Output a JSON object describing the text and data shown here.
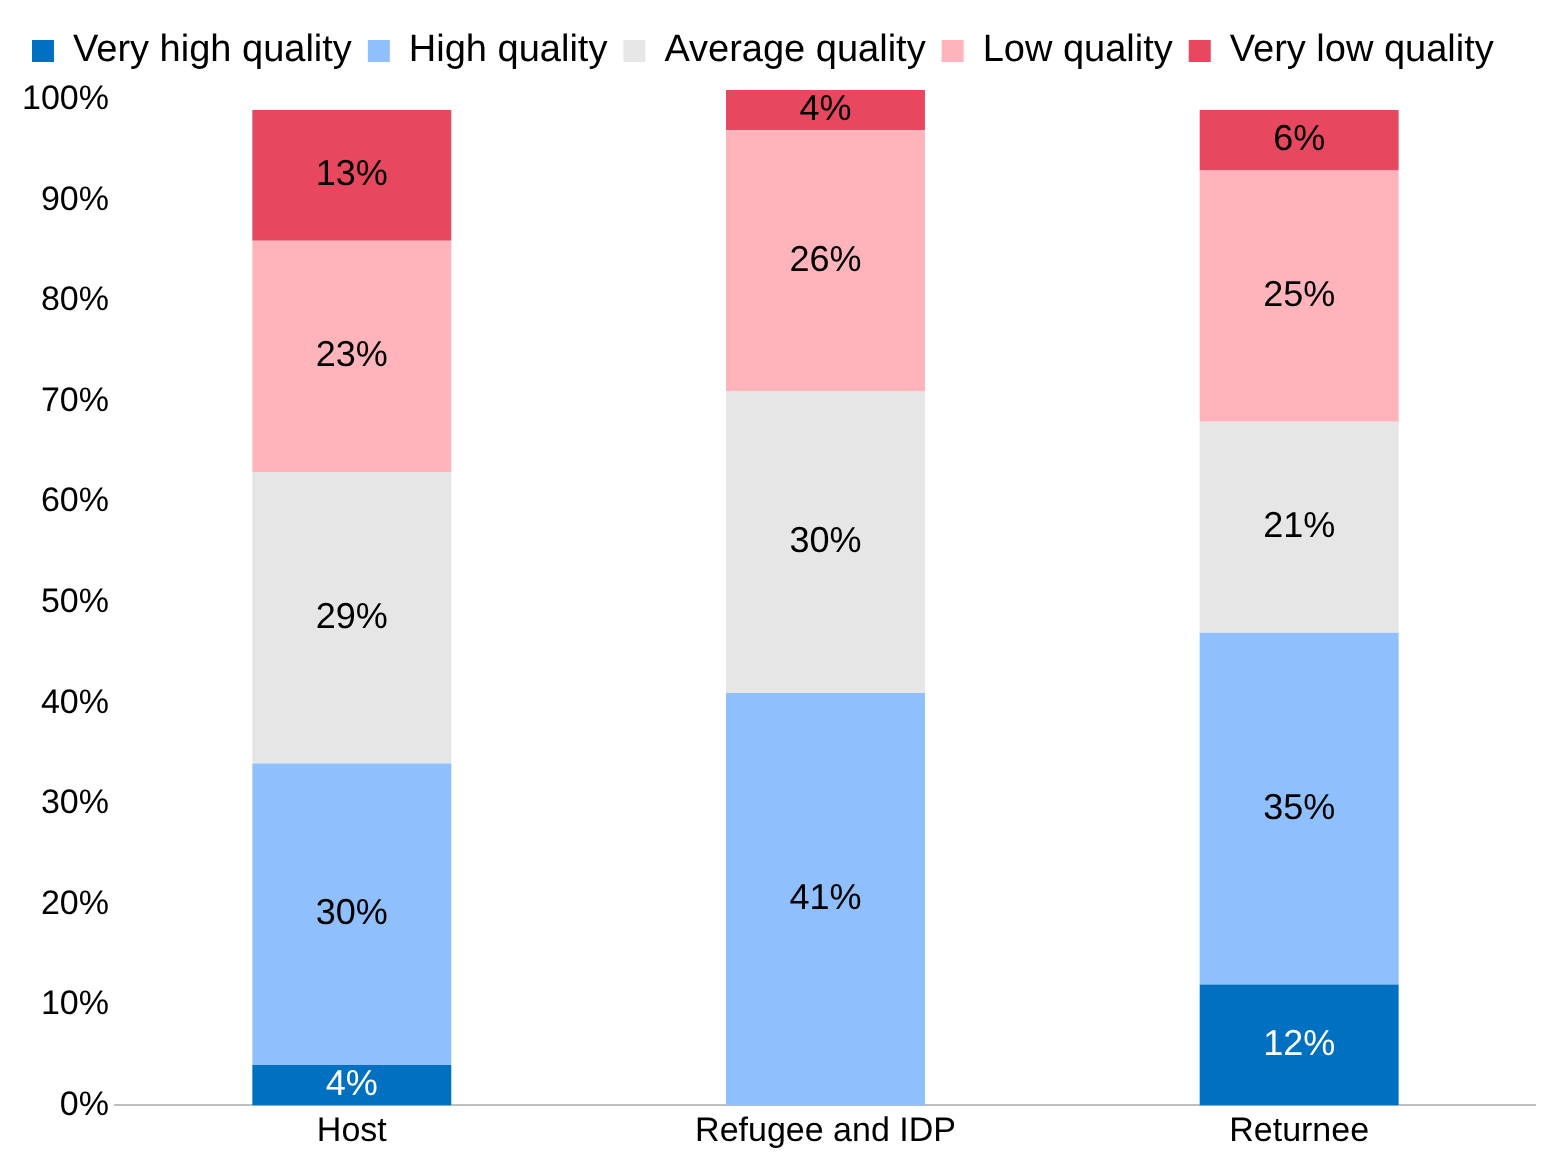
{
  "chart_data": {
    "type": "bar",
    "stacked": true,
    "legend": "top left",
    "grid": false,
    "categories": [
      "Host",
      "Refugee and IDP",
      "Returnee"
    ],
    "series": [
      {
        "name": "Very high quality",
        "color": "#0070c0",
        "values": [
          4,
          null,
          12
        ],
        "value_labels": [
          "4%",
          null,
          "12%"
        ]
      },
      {
        "name": "High quality",
        "color": "#8fbffc",
        "values": [
          30,
          41,
          35
        ],
        "value_labels": [
          "30%",
          "41%",
          "35%"
        ]
      },
      {
        "name": "Average quality",
        "color": "#e6e6e6",
        "values": [
          29,
          30,
          21
        ],
        "value_labels": [
          "29%",
          "30%",
          "21%"
        ]
      },
      {
        "name": "Low quality",
        "color": "#ffb4bb",
        "values": [
          23,
          26,
          25
        ],
        "value_labels": [
          "23%",
          "26%",
          "25%"
        ]
      },
      {
        "name": "Very low quality",
        "color": "#e8485f",
        "values": [
          13,
          4,
          6
        ],
        "value_labels": [
          "13%",
          "4%",
          "6%"
        ]
      }
    ],
    "ylim": [
      0,
      101
    ],
    "yticks": [
      {
        "value": 0,
        "label": "0%"
      },
      {
        "value": 10,
        "label": "10%"
      },
      {
        "value": 20,
        "label": "20%"
      },
      {
        "value": 30,
        "label": "30%"
      },
      {
        "value": 40,
        "label": "40%"
      },
      {
        "value": 50,
        "label": "50%"
      },
      {
        "value": 60,
        "label": "60%"
      },
      {
        "value": 70,
        "label": "70%"
      },
      {
        "value": 80,
        "label": "80%"
      },
      {
        "value": 90,
        "label": "90%"
      },
      {
        "value": 100,
        "label": "100%"
      }
    ]
  }
}
